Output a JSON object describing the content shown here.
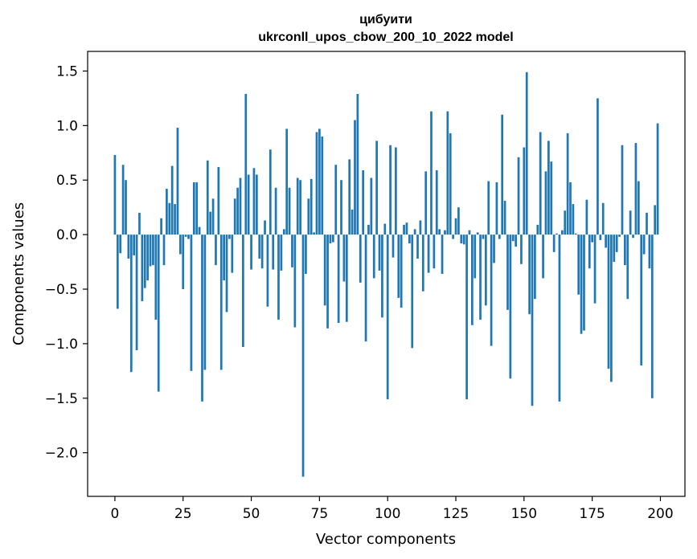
{
  "chart_data": {
    "type": "bar",
    "title_line1": "цибуити",
    "title_line2": "ukrconll_upos_cbow_200_10_2022 model",
    "xlabel": "Vector components",
    "ylabel": "Components values",
    "xlim": [
      -10,
      209
    ],
    "ylim": [
      -2.4,
      1.68
    ],
    "xticks": [
      0,
      25,
      50,
      75,
      100,
      125,
      150,
      175,
      200
    ],
    "yticks": [
      -2.0,
      -1.5,
      -1.0,
      -0.5,
      0.0,
      0.5,
      1.0,
      1.5
    ],
    "ytick_labels": [
      "−2.0",
      "−1.5",
      "−1.0",
      "−0.5",
      "0.0",
      "0.5",
      "1.0",
      "1.5"
    ],
    "bar_color": "#1f77b4",
    "grid": false,
    "values": [
      0.73,
      -0.68,
      -0.17,
      0.64,
      0.5,
      -0.22,
      -1.26,
      -0.19,
      -1.06,
      0.2,
      -0.61,
      -0.49,
      -0.42,
      -0.29,
      -0.28,
      -0.78,
      -1.44,
      0.15,
      -0.28,
      0.42,
      0.29,
      0.63,
      0.28,
      0.98,
      -0.18,
      -0.5,
      -0.02,
      -0.04,
      -1.25,
      0.48,
      0.48,
      0.07,
      -1.53,
      -1.24,
      0.68,
      0.21,
      0.33,
      -0.28,
      0.62,
      -1.24,
      -0.42,
      -0.71,
      -0.04,
      -0.35,
      0.33,
      0.43,
      0.52,
      -1.03,
      1.29,
      0.55,
      -0.32,
      0.61,
      0.55,
      -0.22,
      -0.31,
      0.13,
      -0.66,
      0.78,
      -0.32,
      0.43,
      -0.78,
      -0.33,
      0.05,
      0.97,
      0.43,
      -0.3,
      -0.85,
      0.52,
      0.5,
      -2.22,
      -0.36,
      0.33,
      0.51,
      0.02,
      0.94,
      0.97,
      0.9,
      -0.65,
      -0.86,
      -0.08,
      -0.07,
      0.64,
      -0.81,
      0.5,
      -0.43,
      -0.8,
      0.69,
      0.23,
      1.05,
      1.29,
      -0.44,
      0.59,
      -0.98,
      0.09,
      0.52,
      -0.4,
      0.86,
      -0.33,
      -0.76,
      0.1,
      -1.51,
      0.82,
      -0.21,
      0.8,
      -0.58,
      -0.67,
      0.09,
      0.11,
      -0.08,
      -1.04,
      0.05,
      -0.22,
      0.13,
      -0.52,
      0.58,
      -0.35,
      1.13,
      -0.31,
      0.59,
      0.05,
      -0.36,
      0.04,
      1.13,
      0.93,
      -0.04,
      0.15,
      0.25,
      -0.08,
      -0.09,
      -1.51,
      0.04,
      -0.83,
      -0.4,
      0.02,
      -0.78,
      -0.04,
      -0.65,
      0.49,
      -1.02,
      -0.26,
      0.48,
      -0.04,
      1.1,
      0.31,
      -0.69,
      -1.32,
      -0.06,
      -0.11,
      0.71,
      -0.27,
      0.8,
      1.49,
      -0.73,
      -1.57,
      -0.59,
      0.09,
      0.94,
      -0.4,
      0.58,
      0.86,
      0.67,
      -0.16,
      0.01,
      -1.53,
      0.04,
      0.22,
      0.93,
      0.48,
      0.28,
      0.01,
      -0.55,
      -0.91,
      -0.88,
      0.32,
      -0.31,
      -0.07,
      -0.63,
      1.25,
      -0.05,
      0.29,
      -0.12,
      -1.23,
      -1.35,
      -0.25,
      -0.16,
      -0.02,
      0.82,
      -0.28,
      -0.59,
      0.22,
      -0.03,
      0.84,
      0.49,
      -1.2,
      -0.18,
      0.2,
      -0.31,
      -1.5,
      0.27,
      1.02
    ]
  }
}
